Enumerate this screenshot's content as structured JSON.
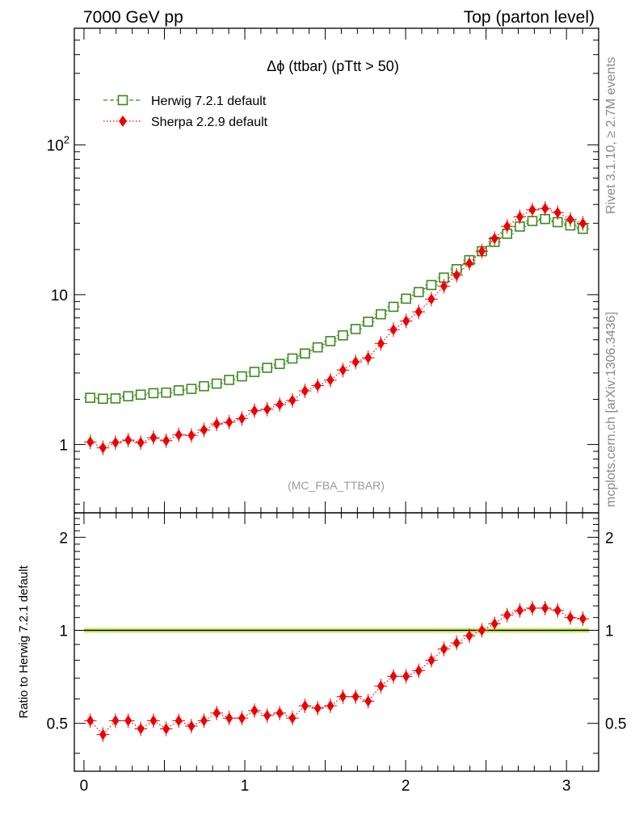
{
  "header": {
    "left": "7000 GeV pp",
    "right": "Top (parton level)"
  },
  "side": {
    "rivet": "Rivet 3.1.10, ≥ 2.7M events",
    "mcplots": "mcplots.cern.ch [arXiv:1306.3436]"
  },
  "chart_data": [
    {
      "type": "line",
      "title": "Δϕ (ttbar) (pTtt > 50)",
      "watermark": "(MC_FBA_TTBAR)",
      "yscale": "log",
      "xlim": [
        -0.06,
        3.2
      ],
      "ylim": [
        0.35,
        600
      ],
      "y_ticks": [
        {
          "value": 1,
          "label": "1"
        },
        {
          "value": 10,
          "label": "10"
        },
        {
          "value": 100,
          "label": "10^2"
        }
      ],
      "legend_position": "top-left",
      "x": [
        0.039,
        0.118,
        0.196,
        0.275,
        0.353,
        0.432,
        0.511,
        0.589,
        0.668,
        0.746,
        0.825,
        0.903,
        0.982,
        1.06,
        1.139,
        1.217,
        1.296,
        1.374,
        1.453,
        1.532,
        1.61,
        1.689,
        1.767,
        1.846,
        1.924,
        2.003,
        2.081,
        2.16,
        2.238,
        2.317,
        2.396,
        2.474,
        2.553,
        2.631,
        2.71,
        2.788,
        2.867,
        2.945,
        3.024,
        3.102
      ],
      "series": [
        {
          "name": "Herwig 7.2.1 default",
          "color": "#3a8a1a",
          "marker": "open-square",
          "line": "dashed",
          "values": [
            2.05,
            2.02,
            2.03,
            2.1,
            2.15,
            2.2,
            2.22,
            2.3,
            2.35,
            2.45,
            2.55,
            2.7,
            2.85,
            3.05,
            3.25,
            3.45,
            3.75,
            4.05,
            4.45,
            4.9,
            5.35,
            5.9,
            6.6,
            7.4,
            8.3,
            9.4,
            10.4,
            11.6,
            13.0,
            14.8,
            17.0,
            19.5,
            22.5,
            25.5,
            28.5,
            31.0,
            32.0,
            30.5,
            29.0,
            27.5
          ]
        },
        {
          "name": "Sherpa 2.2.9 default",
          "color": "#ee0000",
          "marker": "filled-diamond",
          "line": "dotted",
          "values": [
            1.04,
            0.95,
            1.03,
            1.07,
            1.03,
            1.11,
            1.06,
            1.16,
            1.15,
            1.25,
            1.37,
            1.41,
            1.49,
            1.68,
            1.72,
            1.85,
            1.97,
            2.28,
            2.47,
            2.69,
            3.14,
            3.56,
            3.79,
            4.72,
            5.84,
            6.67,
            7.68,
            9.34,
            11.4,
            13.5,
            16.2,
            19.5,
            23.7,
            28.6,
            33.1,
            36.8,
            37.6,
            35.3,
            31.8,
            29.9
          ]
        }
      ]
    },
    {
      "type": "line",
      "ylabel": "Ratio to Herwig 7.2.1 default",
      "xlim": [
        -0.06,
        3.2
      ],
      "ylim": [
        0.35,
        2.4
      ],
      "y_ticks": [
        {
          "value": 0.5,
          "label": "0.5"
        },
        {
          "value": 1,
          "label": "1"
        },
        {
          "value": 2,
          "label": "2"
        }
      ],
      "x_ticks": [
        {
          "value": 0,
          "label": "0"
        },
        {
          "value": 1,
          "label": "1"
        },
        {
          "value": 2,
          "label": "2"
        },
        {
          "value": 3,
          "label": "3"
        }
      ],
      "reference_band_color": "#ccee55",
      "reference_line_color": "#1e7a1e",
      "series": [
        {
          "name": "Sherpa 2.2.9 default",
          "color": "#ee0000",
          "values": [
            0.51,
            0.46,
            0.51,
            0.51,
            0.48,
            0.51,
            0.48,
            0.51,
            0.49,
            0.51,
            0.54,
            0.52,
            0.52,
            0.55,
            0.53,
            0.54,
            0.52,
            0.57,
            0.56,
            0.57,
            0.61,
            0.61,
            0.59,
            0.66,
            0.71,
            0.71,
            0.74,
            0.8,
            0.87,
            0.91,
            0.96,
            1.0,
            1.05,
            1.12,
            1.16,
            1.18,
            1.18,
            1.16,
            1.1,
            1.09
          ]
        }
      ]
    }
  ]
}
